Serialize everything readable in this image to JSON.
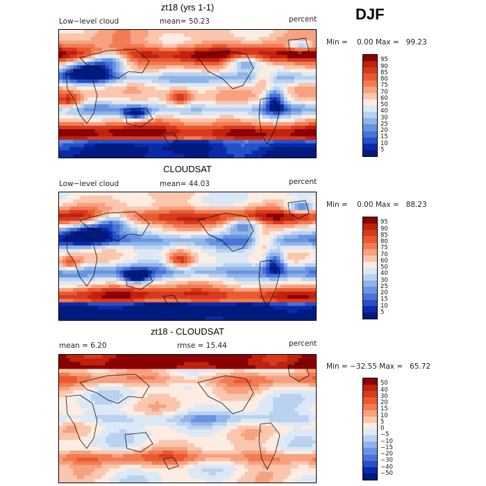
{
  "season": "DJF",
  "panels": [
    {
      "title": "zt18 (yrs 1-1)",
      "left_label": "Low−level cloud",
      "mid_label": "mean=  50.23",
      "right_label": "percent",
      "stats": "Min =    0.00 Max =   99.23",
      "colorbar_ticks": [
        "95",
        "90",
        "85",
        "80",
        "75",
        "70",
        "60",
        "50",
        "40",
        "30",
        "25",
        "20",
        "15",
        "10",
        "5"
      ],
      "colorbar_colors": [
        "#8b0000",
        "#c1210f",
        "#d83a1f",
        "#ea5a2f",
        "#f27c52",
        "#f6a180",
        "#fac6ad",
        "#fdece2",
        "#dce8f6",
        "#bad2f0",
        "#8fb4e8",
        "#6a94e0",
        "#4a72d8",
        "#2450c8",
        "#0a2aa8",
        "#001a80"
      ],
      "map_style": "model"
    },
    {
      "title": "CLOUDSAT",
      "left_label": "Low−level cloud",
      "mid_label": "mean=  44.03",
      "right_label": "percent",
      "stats": "Min =    0.00 Max =   88.23",
      "colorbar_ticks": [
        "95",
        "90",
        "85",
        "80",
        "75",
        "70",
        "60",
        "50",
        "40",
        "30",
        "25",
        "20",
        "15",
        "10",
        "5"
      ],
      "colorbar_colors": [
        "#8b0000",
        "#c1210f",
        "#d83a1f",
        "#ea5a2f",
        "#f27c52",
        "#f6a180",
        "#fac6ad",
        "#fdece2",
        "#dce8f6",
        "#bad2f0",
        "#8fb4e8",
        "#6a94e0",
        "#4a72d8",
        "#2450c8",
        "#0a2aa8",
        "#001a80"
      ],
      "map_style": "obs"
    },
    {
      "title": "zt18 - CLOUDSAT",
      "left_label": "mean =     6.20",
      "mid_label": "rmse =  15.44",
      "right_label": "percent",
      "stats": "Min = −32.55 Max =   65.72",
      "colorbar_ticks": [
        "50",
        "40",
        "30",
        "20",
        "15",
        "10",
        "5",
        "0",
        "−5",
        "−10",
        "−15",
        "−20",
        "−30",
        "−40",
        "−50"
      ],
      "colorbar_colors": [
        "#8b0000",
        "#c1210f",
        "#d83a1f",
        "#ea5a2f",
        "#f27c52",
        "#f6a180",
        "#fac6ad",
        "#fdece2",
        "#dce8f6",
        "#bad2f0",
        "#8fb4e8",
        "#6a94e0",
        "#4a72d8",
        "#2450c8",
        "#0a2aa8",
        "#001a80"
      ],
      "map_style": "diff"
    }
  ]
}
